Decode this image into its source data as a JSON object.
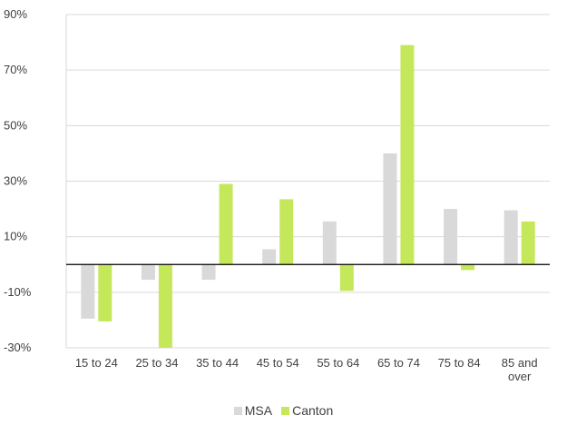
{
  "chart_data": {
    "type": "bar",
    "categories": [
      "15 to 24",
      "25 to 34",
      "35 to 44",
      "45 to 54",
      "55 to 64",
      "65 to 74",
      "75 to 84",
      "85 and over"
    ],
    "category_lines": [
      [
        "15 to 24"
      ],
      [
        "25 to 34"
      ],
      [
        "35 to 44"
      ],
      [
        "45 to 54"
      ],
      [
        "55 to 64"
      ],
      [
        "65 to 74"
      ],
      [
        "75 to 84"
      ],
      [
        "85 and",
        "over"
      ]
    ],
    "series": [
      {
        "name": "MSA",
        "color": "#d9d9d9",
        "values": [
          -19.5,
          -5.5,
          -5.5,
          5.5,
          15.5,
          40,
          20,
          19.5
        ]
      },
      {
        "name": "Canton",
        "color": "#c5e85b",
        "values": [
          -20.5,
          -30,
          29,
          23.5,
          -9.5,
          79,
          -2,
          15.5
        ]
      }
    ],
    "ylim": [
      -30,
      90
    ],
    "yticks": [
      -30,
      -10,
      10,
      30,
      50,
      70,
      90
    ],
    "ytick_labels": [
      "-30%",
      "-10%",
      "10%",
      "30%",
      "50%",
      "70%",
      "90%"
    ],
    "grid": true,
    "legend_position": "bottom"
  }
}
